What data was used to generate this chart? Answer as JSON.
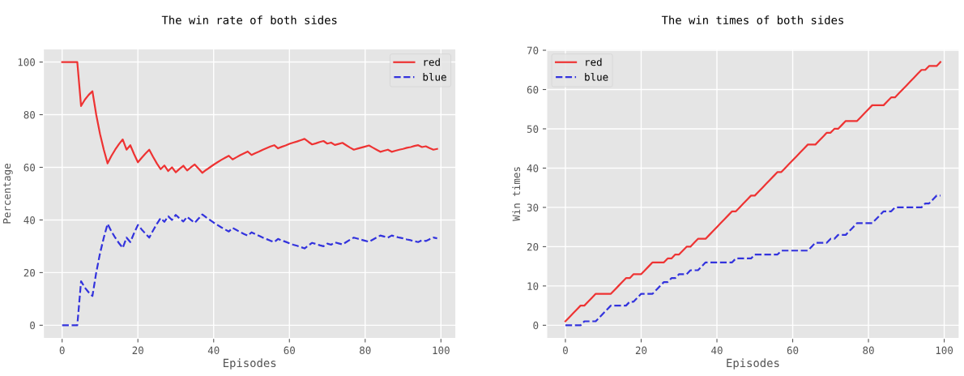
{
  "chart_data": [
    {
      "type": "line",
      "title": "The win rate of both sides",
      "xlabel": "Episodes",
      "ylabel": "Percentage",
      "x": [
        0,
        1,
        2,
        3,
        4,
        5,
        6,
        7,
        8,
        9,
        10,
        11,
        12,
        13,
        14,
        15,
        16,
        17,
        18,
        19,
        20,
        21,
        22,
        23,
        24,
        25,
        26,
        27,
        28,
        29,
        30,
        31,
        32,
        33,
        34,
        35,
        36,
        37,
        38,
        39,
        40,
        41,
        42,
        43,
        44,
        45,
        46,
        47,
        48,
        49,
        50,
        51,
        52,
        53,
        54,
        55,
        56,
        57,
        58,
        59,
        60,
        61,
        62,
        63,
        64,
        65,
        66,
        67,
        68,
        69,
        70,
        71,
        72,
        73,
        74,
        75,
        76,
        77,
        78,
        79,
        80,
        81,
        82,
        83,
        84,
        85,
        86,
        87,
        88,
        89,
        90,
        91,
        92,
        93,
        94,
        95,
        96,
        97,
        98,
        99
      ],
      "series": [
        {
          "name": "red",
          "color": "#ee3333",
          "line_style": "solid",
          "values": [
            100,
            100,
            100,
            100,
            100,
            83.3,
            85.7,
            87.5,
            88.9,
            80.0,
            72.7,
            66.7,
            61.5,
            64.3,
            66.7,
            68.8,
            70.6,
            66.7,
            68.4,
            65.0,
            61.9,
            63.6,
            65.2,
            66.7,
            64.0,
            61.5,
            59.3,
            60.7,
            58.6,
            60.0,
            58.1,
            59.4,
            60.6,
            58.8,
            60.0,
            61.1,
            59.5,
            57.9,
            59.0,
            60.0,
            61.0,
            61.9,
            62.8,
            63.6,
            64.4,
            63.0,
            63.8,
            64.6,
            65.3,
            66.0,
            64.7,
            65.4,
            66.0,
            66.7,
            67.3,
            67.9,
            68.4,
            67.2,
            67.8,
            68.3,
            68.9,
            69.4,
            69.8,
            70.3,
            70.8,
            69.7,
            68.7,
            69.1,
            69.6,
            70.0,
            69.0,
            69.4,
            68.5,
            68.9,
            69.3,
            68.4,
            67.5,
            66.7,
            67.1,
            67.5,
            67.9,
            68.3,
            67.5,
            66.7,
            65.9,
            66.3,
            66.7,
            65.9,
            66.3,
            66.7,
            67.0,
            67.4,
            67.7,
            68.1,
            68.4,
            67.7,
            68.0,
            67.3,
            66.7,
            67.0
          ]
        },
        {
          "name": "blue",
          "color": "#3333dd",
          "line_style": "dashed",
          "values": [
            0,
            0,
            0,
            0,
            0,
            16.7,
            14.3,
            12.5,
            11.1,
            20.0,
            27.3,
            33.3,
            38.5,
            35.7,
            33.3,
            31.2,
            29.4,
            33.3,
            31.6,
            35.0,
            38.1,
            36.4,
            34.8,
            33.3,
            36.0,
            38.5,
            40.7,
            39.3,
            41.4,
            40.0,
            41.9,
            40.6,
            39.4,
            41.2,
            40.0,
            38.9,
            40.5,
            42.1,
            41.0,
            40.0,
            39.0,
            38.1,
            37.2,
            36.4,
            35.6,
            37.0,
            36.2,
            35.4,
            34.7,
            34.0,
            35.3,
            34.6,
            34.0,
            33.3,
            32.7,
            32.1,
            31.6,
            32.8,
            32.2,
            31.7,
            31.1,
            30.6,
            30.2,
            29.7,
            29.2,
            30.3,
            31.3,
            30.9,
            30.4,
            30.0,
            31.0,
            30.6,
            31.5,
            31.1,
            30.7,
            31.6,
            32.5,
            33.3,
            32.9,
            32.5,
            32.1,
            31.7,
            32.5,
            33.3,
            34.1,
            33.7,
            33.3,
            34.1,
            33.7,
            33.3,
            33.0,
            32.6,
            32.3,
            31.9,
            31.6,
            32.3,
            32.0,
            32.7,
            33.3,
            33.0
          ]
        }
      ],
      "xlim": [
        -4.95,
        103.95
      ],
      "xticks": [
        0,
        20,
        40,
        60,
        80,
        100
      ],
      "ylim": [
        -5,
        105
      ],
      "yticks": [
        0,
        20,
        40,
        60,
        80,
        100
      ],
      "grid": true,
      "legend": "top right",
      "marker": "none"
    },
    {
      "type": "line",
      "title": "The win times of both sides",
      "xlabel": "Episodes",
      "ylabel": "Win times",
      "x": [
        0,
        1,
        2,
        3,
        4,
        5,
        6,
        7,
        8,
        9,
        10,
        11,
        12,
        13,
        14,
        15,
        16,
        17,
        18,
        19,
        20,
        21,
        22,
        23,
        24,
        25,
        26,
        27,
        28,
        29,
        30,
        31,
        32,
        33,
        34,
        35,
        36,
        37,
        38,
        39,
        40,
        41,
        42,
        43,
        44,
        45,
        46,
        47,
        48,
        49,
        50,
        51,
        52,
        53,
        54,
        55,
        56,
        57,
        58,
        59,
        60,
        61,
        62,
        63,
        64,
        65,
        66,
        67,
        68,
        69,
        70,
        71,
        72,
        73,
        74,
        75,
        76,
        77,
        78,
        79,
        80,
        81,
        82,
        83,
        84,
        85,
        86,
        87,
        88,
        89,
        90,
        91,
        92,
        93,
        94,
        95,
        96,
        97,
        98,
        99
      ],
      "series": [
        {
          "name": "red",
          "color": "#ee3333",
          "line_style": "solid",
          "values": [
            1,
            2,
            3,
            4,
            5,
            5,
            6,
            7,
            8,
            8,
            8,
            8,
            8,
            9,
            10,
            11,
            12,
            12,
            13,
            13,
            13,
            14,
            15,
            16,
            16,
            16,
            16,
            17,
            17,
            18,
            18,
            19,
            20,
            20,
            21,
            22,
            22,
            22,
            23,
            24,
            25,
            26,
            27,
            28,
            29,
            29,
            30,
            31,
            32,
            33,
            33,
            34,
            35,
            36,
            37,
            38,
            39,
            39,
            40,
            41,
            42,
            43,
            44,
            45,
            46,
            46,
            46,
            47,
            48,
            49,
            49,
            50,
            50,
            51,
            52,
            52,
            52,
            52,
            53,
            54,
            55,
            56,
            56,
            56,
            56,
            57,
            58,
            58,
            59,
            60,
            61,
            62,
            63,
            64,
            65,
            65,
            66,
            66,
            66,
            67
          ]
        },
        {
          "name": "blue",
          "color": "#3333dd",
          "line_style": "dashed",
          "values": [
            0,
            0,
            0,
            0,
            0,
            1,
            1,
            1,
            1,
            2,
            3,
            4,
            5,
            5,
            5,
            5,
            5,
            6,
            6,
            7,
            8,
            8,
            8,
            8,
            9,
            10,
            11,
            11,
            12,
            12,
            13,
            13,
            13,
            14,
            14,
            14,
            15,
            16,
            16,
            16,
            16,
            16,
            16,
            16,
            16,
            17,
            17,
            17,
            17,
            17,
            18,
            18,
            18,
            18,
            18,
            18,
            18,
            19,
            19,
            19,
            19,
            19,
            19,
            19,
            19,
            20,
            21,
            21,
            21,
            21,
            22,
            22,
            23,
            23,
            23,
            24,
            25,
            26,
            26,
            26,
            26,
            26,
            27,
            28,
            29,
            29,
            29,
            30,
            30,
            30,
            30,
            30,
            30,
            30,
            30,
            31,
            31,
            32,
            33,
            33
          ]
        }
      ],
      "xlim": [
        -4.95,
        103.95
      ],
      "xticks": [
        0,
        20,
        40,
        60,
        80,
        100
      ],
      "ylim": [
        -3.35,
        70.35
      ],
      "yticks": [
        0,
        10,
        20,
        30,
        40,
        50,
        60,
        70
      ],
      "grid": true,
      "legend": "top left",
      "marker": "none"
    }
  ]
}
